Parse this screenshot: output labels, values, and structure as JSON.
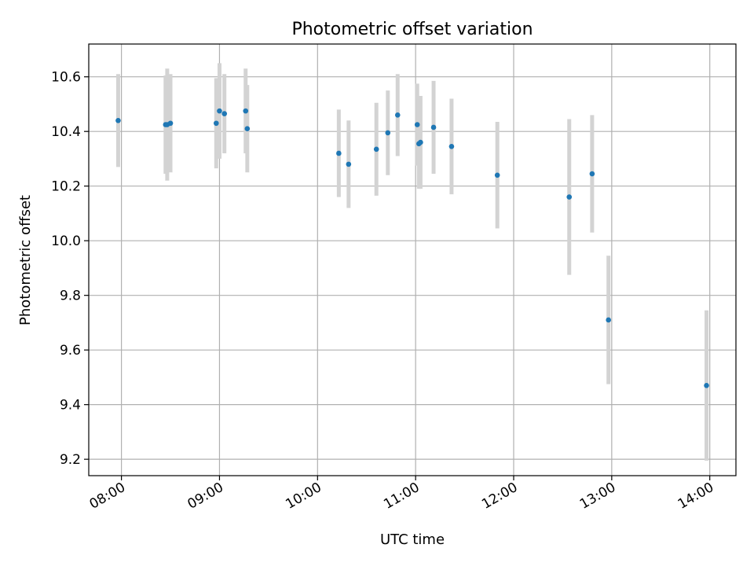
{
  "chart_data": {
    "type": "scatter",
    "title": "Photometric offset variation",
    "xlabel": "UTC time",
    "ylabel": "Photometric offset",
    "xlim": [
      "07:40",
      "14:16"
    ],
    "ylim": [
      9.14,
      10.72
    ],
    "grid": true,
    "x_ticks": [
      "08:00",
      "09:00",
      "10:00",
      "11:00",
      "12:00",
      "13:00",
      "14:00"
    ],
    "y_ticks": [
      9.2,
      9.4,
      9.6,
      9.8,
      10.0,
      10.2,
      10.4,
      10.6
    ],
    "y_tick_labels": [
      "9.2",
      "9.4",
      "9.6",
      "9.8",
      "10.0",
      "10.2",
      "10.4",
      "10.6"
    ],
    "point_color": "#1f77b4",
    "errorbar_color": "#d3d3d3",
    "points": [
      {
        "t": "07:58",
        "y": 10.44,
        "err": 0.17
      },
      {
        "t": "08:27",
        "y": 10.425,
        "err": 0.18
      },
      {
        "t": "08:28",
        "y": 10.425,
        "err": 0.205
      },
      {
        "t": "08:30",
        "y": 10.43,
        "err": 0.18
      },
      {
        "t": "08:58",
        "y": 10.43,
        "err": 0.165
      },
      {
        "t": "09:00",
        "y": 10.475,
        "err": 0.175
      },
      {
        "t": "09:03",
        "y": 10.465,
        "err": 0.145
      },
      {
        "t": "09:16",
        "y": 10.475,
        "err": 0.155
      },
      {
        "t": "09:17",
        "y": 10.41,
        "err": 0.16
      },
      {
        "t": "10:13",
        "y": 10.32,
        "err": 0.16
      },
      {
        "t": "10:19",
        "y": 10.28,
        "err": 0.16
      },
      {
        "t": "10:36",
        "y": 10.335,
        "err": 0.17
      },
      {
        "t": "10:43",
        "y": 10.395,
        "err": 0.155
      },
      {
        "t": "10:49",
        "y": 10.46,
        "err": 0.15
      },
      {
        "t": "11:01",
        "y": 10.425,
        "err": 0.15
      },
      {
        "t": "11:02",
        "y": 10.355,
        "err": 0.165
      },
      {
        "t": "11:03",
        "y": 10.36,
        "err": 0.17
      },
      {
        "t": "11:11",
        "y": 10.415,
        "err": 0.17
      },
      {
        "t": "11:22",
        "y": 10.345,
        "err": 0.175
      },
      {
        "t": "11:50",
        "y": 10.24,
        "err": 0.195
      },
      {
        "t": "12:34",
        "y": 10.16,
        "err": 0.285
      },
      {
        "t": "12:48",
        "y": 10.245,
        "err": 0.215
      },
      {
        "t": "12:58",
        "y": 9.71,
        "err": 0.235
      },
      {
        "t": "13:58",
        "y": 9.47,
        "err": 0.275
      }
    ]
  }
}
